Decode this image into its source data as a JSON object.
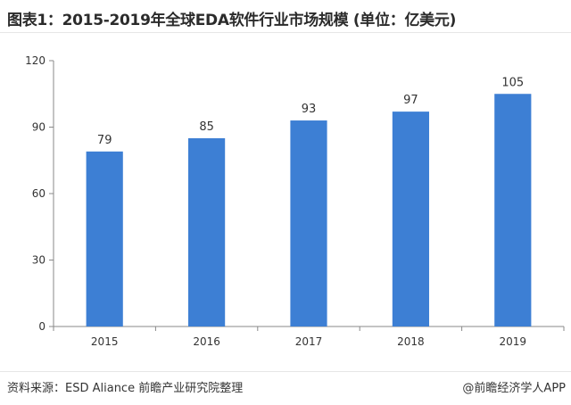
{
  "title": "图表1：2015-2019年全球EDA软件行业市场规模 (单位：亿美元)",
  "source": "资料来源：ESD Aliance 前瞻产业研究院整理",
  "brand": "@前瞻经济学人APP",
  "colors": {
    "bar": "#3d7fd4",
    "axis": "#888888",
    "text": "#333333"
  },
  "chart_data": {
    "type": "bar",
    "categories": [
      "2015",
      "2016",
      "2017",
      "2018",
      "2019"
    ],
    "values": [
      79,
      85,
      93,
      97,
      105
    ],
    "ylim": [
      0,
      120
    ],
    "yticks": [
      0,
      30,
      60,
      90,
      120
    ],
    "data_labels": true,
    "grid": false,
    "legend": "none"
  }
}
